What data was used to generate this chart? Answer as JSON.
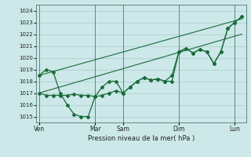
{
  "bg_color": "#cce8e8",
  "grid_color": "#aacccc",
  "line_color": "#1a6b3a",
  "xlabel": "Pression niveau de la mer( hPa )",
  "ylim": [
    1014.5,
    1024.5
  ],
  "yticks": [
    1015,
    1016,
    1017,
    1018,
    1019,
    1020,
    1021,
    1022,
    1023,
    1024
  ],
  "day_labels": [
    "Ven",
    "Mar",
    "Sam",
    "Dim",
    "Lun"
  ],
  "day_positions": [
    0.0,
    0.4,
    0.6,
    1.0,
    1.4
  ],
  "xlim": [
    -0.02,
    1.48
  ],
  "series1_x": [
    0.0,
    0.05,
    0.1,
    0.15,
    0.2,
    0.25,
    0.3,
    0.35,
    0.4,
    0.45,
    0.5,
    0.55,
    0.6,
    0.65,
    0.7,
    0.75,
    0.8,
    0.85,
    0.9,
    0.95,
    1.0,
    1.05,
    1.1,
    1.15,
    1.2,
    1.25,
    1.3,
    1.35,
    1.4,
    1.45
  ],
  "series1_y": [
    1017.0,
    1016.8,
    1016.8,
    1016.8,
    1016.8,
    1016.9,
    1016.8,
    1016.8,
    1016.7,
    1016.8,
    1017.0,
    1017.2,
    1017.0,
    1017.5,
    1018.0,
    1018.3,
    1018.1,
    1018.2,
    1018.0,
    1018.0,
    1020.5,
    1020.8,
    1020.4,
    1020.7,
    1020.5,
    1019.5,
    1020.5,
    1022.5,
    1023.0,
    1023.5
  ],
  "series2_x": [
    0.0,
    0.05,
    0.1,
    0.15,
    0.2,
    0.25,
    0.3,
    0.35,
    0.4,
    0.45,
    0.5,
    0.55,
    0.6,
    0.65,
    0.7,
    0.75,
    0.8,
    0.85,
    0.9,
    0.95,
    1.0,
    1.05,
    1.1,
    1.15,
    1.2,
    1.25,
    1.3,
    1.35,
    1.4,
    1.45
  ],
  "series2_y": [
    1018.5,
    1019.0,
    1018.8,
    1017.0,
    1016.0,
    1015.2,
    1015.0,
    1015.0,
    1016.7,
    1017.5,
    1018.0,
    1018.0,
    1017.0,
    1017.5,
    1018.0,
    1018.3,
    1018.1,
    1018.2,
    1018.0,
    1018.5,
    1020.5,
    1020.8,
    1020.4,
    1020.7,
    1020.5,
    1019.5,
    1020.5,
    1022.5,
    1023.0,
    1023.5
  ],
  "trend1_x": [
    0.0,
    1.45
  ],
  "trend1_y": [
    1018.5,
    1023.3
  ],
  "trend2_x": [
    0.0,
    1.45
  ],
  "trend2_y": [
    1017.0,
    1022.0
  ]
}
